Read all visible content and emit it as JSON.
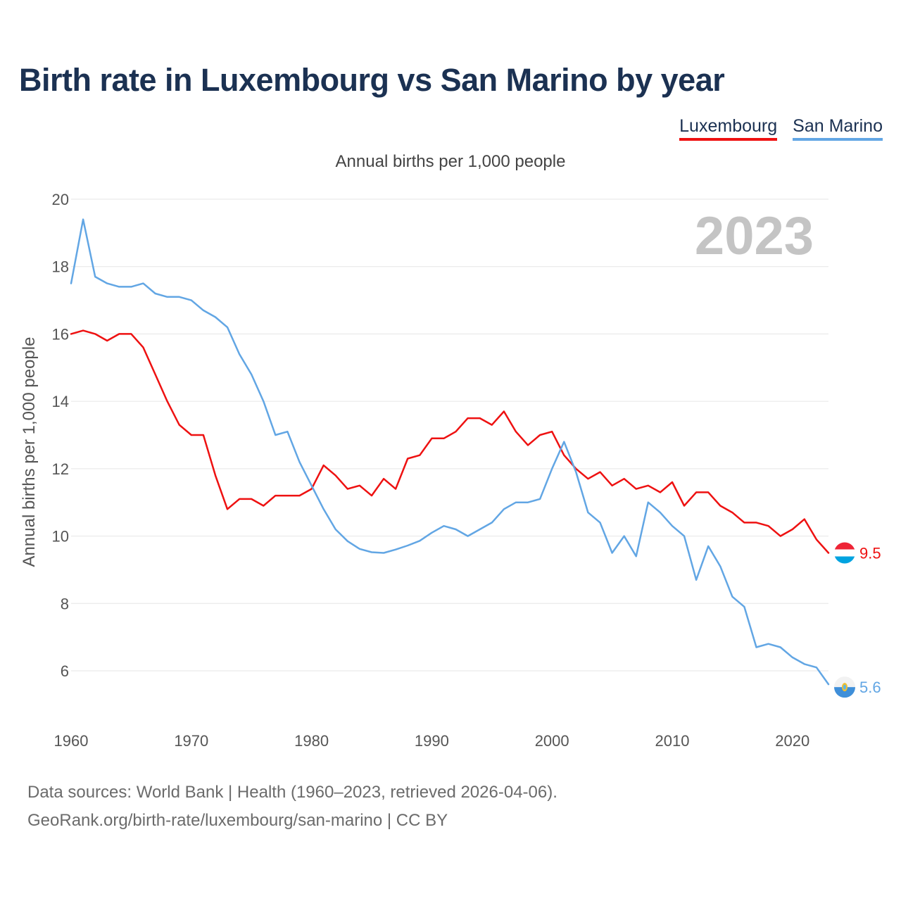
{
  "chart_data": {
    "type": "line",
    "title": "Birth rate in Luxembourg vs San Marino by year",
    "subtitle": "Annual births per 1,000 people",
    "ylabel": "Annual births per 1,000 people",
    "xlabel": "",
    "current_year": "2023",
    "xlim": [
      1960,
      2023
    ],
    "ylim": [
      4.5,
      20
    ],
    "xticks": [
      "1960",
      "1970",
      "1980",
      "1990",
      "2000",
      "2010",
      "2020"
    ],
    "yticks": [
      "6",
      "8",
      "10",
      "12",
      "14",
      "16",
      "18",
      "20"
    ],
    "x": [
      1960,
      1961,
      1962,
      1963,
      1964,
      1965,
      1966,
      1967,
      1968,
      1969,
      1970,
      1971,
      1972,
      1973,
      1974,
      1975,
      1976,
      1977,
      1978,
      1979,
      1980,
      1981,
      1982,
      1983,
      1984,
      1985,
      1986,
      1987,
      1988,
      1989,
      1990,
      1991,
      1992,
      1993,
      1994,
      1995,
      1996,
      1997,
      1998,
      1999,
      2000,
      2001,
      2002,
      2003,
      2004,
      2005,
      2006,
      2007,
      2008,
      2009,
      2010,
      2011,
      2012,
      2013,
      2014,
      2015,
      2016,
      2017,
      2018,
      2019,
      2020,
      2021,
      2022,
      2023
    ],
    "series": [
      {
        "name": "Luxembourg",
        "color": "#ee1111",
        "end_label": "9.5",
        "values": [
          16.0,
          16.1,
          16.0,
          15.8,
          16.0,
          16.0,
          15.6,
          14.8,
          14.0,
          13.3,
          13.0,
          13.0,
          11.8,
          10.8,
          11.1,
          11.1,
          10.9,
          11.2,
          11.2,
          11.2,
          11.4,
          12.1,
          11.8,
          11.4,
          11.5,
          11.2,
          11.7,
          11.4,
          12.3,
          12.4,
          12.9,
          12.9,
          13.1,
          13.5,
          13.5,
          13.3,
          13.7,
          13.1,
          12.7,
          13.0,
          13.1,
          12.4,
          12.0,
          11.7,
          11.9,
          11.5,
          11.7,
          11.4,
          11.5,
          11.3,
          11.6,
          10.9,
          11.3,
          11.3,
          10.9,
          10.7,
          10.4,
          10.4,
          10.3,
          10.0,
          10.2,
          10.5,
          9.9,
          9.5
        ]
      },
      {
        "name": "San Marino",
        "color": "#62a6e4",
        "end_label": "5.6",
        "values": [
          17.5,
          19.4,
          17.7,
          17.5,
          17.4,
          17.4,
          17.5,
          17.2,
          17.1,
          17.1,
          17.0,
          16.7,
          16.5,
          16.2,
          15.4,
          14.8,
          14.0,
          13.0,
          13.1,
          12.2,
          11.5,
          10.8,
          10.2,
          9.85,
          9.62,
          9.52,
          9.5,
          9.6,
          9.72,
          9.86,
          10.1,
          10.3,
          10.2,
          10.0,
          10.2,
          10.4,
          10.8,
          11.0,
          11.0,
          11.1,
          12.0,
          12.8,
          11.9,
          10.7,
          10.4,
          9.5,
          10.0,
          9.4,
          11.0,
          10.7,
          10.3,
          10.0,
          8.7,
          9.7,
          9.1,
          8.2,
          7.9,
          6.7,
          6.8,
          6.7,
          6.4,
          6.2,
          6.1,
          5.6
        ]
      }
    ]
  },
  "legend": [
    {
      "label": "Luxembourg"
    },
    {
      "label": "San Marino"
    }
  ],
  "footer": {
    "sources": "Data sources: World Bank | Health (1960–2023, retrieved 2026-04-06).",
    "credit": "GeoRank.org/birth-rate/luxembourg/san-marino | CC BY"
  },
  "flags": {
    "luxembourg": {
      "icon": "luxembourg-flag-icon",
      "colors": [
        "#ee2436",
        "#ffffff",
        "#00a3e0"
      ]
    },
    "san_marino": {
      "icon": "san-marino-flag-icon",
      "colors": [
        "#ffffff",
        "#5eb6e4",
        "#f1bf31"
      ]
    }
  }
}
